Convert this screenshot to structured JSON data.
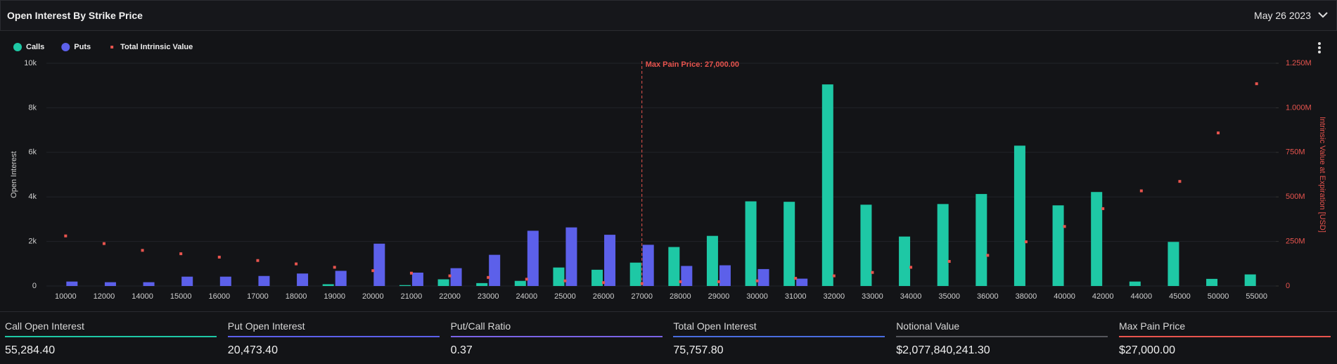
{
  "header": {
    "title": "Open Interest By Strike Price",
    "date": "May 26 2023"
  },
  "chart_data": {
    "type": "bar",
    "categories": [
      "10000",
      "12000",
      "14000",
      "15000",
      "16000",
      "17000",
      "18000",
      "19000",
      "20000",
      "21000",
      "22000",
      "23000",
      "24000",
      "25000",
      "26000",
      "27000",
      "28000",
      "29000",
      "30000",
      "31000",
      "32000",
      "33000",
      "34000",
      "35000",
      "36000",
      "38000",
      "40000",
      "42000",
      "44000",
      "45000",
      "50000",
      "55000"
    ],
    "series": [
      {
        "name": "Calls",
        "color": "#1ec8a5",
        "values": [
          0,
          0,
          0,
          0,
          0,
          0,
          0,
          80,
          0,
          40,
          300,
          130,
          230,
          830,
          730,
          1050,
          1750,
          2250,
          3800,
          3780,
          9050,
          3650,
          2220,
          3680,
          4130,
          6300,
          3620,
          4220,
          200,
          1980,
          320,
          520
        ]
      },
      {
        "name": "Puts",
        "color": "#5c60ea",
        "values": [
          200,
          170,
          170,
          420,
          420,
          450,
          560,
          680,
          1900,
          600,
          800,
          1400,
          2480,
          2630,
          2300,
          1850,
          900,
          930,
          760,
          330,
          0,
          0,
          0,
          0,
          0,
          0,
          0,
          0,
          0,
          0,
          0,
          0
        ]
      },
      {
        "name": "Total Intrinsic Value",
        "color": "#e8544e",
        "axis": "y2",
        "values": [
          281,
          238,
          200,
          181,
          162,
          143,
          124,
          105,
          86,
          72,
          57,
          48,
          38,
          29,
          19,
          14,
          24,
          24,
          29,
          43,
          57,
          76,
          105,
          138,
          172,
          248,
          334,
          434,
          534,
          587,
          859,
          1135
        ]
      }
    ],
    "ylabel": "Open Interest",
    "y2label": "Intrinsic Value at Expiration [USD]",
    "ylim": [
      0,
      10000
    ],
    "yticks": [
      0,
      {
        "value": 2000,
        "label": "2k"
      },
      {
        "value": 4000,
        "label": "4k"
      },
      {
        "value": 6000,
        "label": "6k"
      },
      {
        "value": 8000,
        "label": "8k"
      },
      {
        "value": 10000,
        "label": "10k"
      }
    ],
    "y2lim": [
      0,
      1250
    ],
    "y2ticks": [
      0,
      {
        "value": 250,
        "label": "250M"
      },
      {
        "value": 500,
        "label": "500M"
      },
      {
        "value": 750,
        "label": "750M"
      },
      {
        "value": 1000,
        "label": "1.000M"
      },
      {
        "value": 1250,
        "label": "1.250M"
      }
    ],
    "grid": true,
    "legend": "top-left",
    "max_pain_strike": "27000",
    "annotation": "Max Pain Price: 27,000.00",
    "annotation_color": "#e8544e"
  },
  "stats": [
    {
      "label": "Call Open Interest",
      "value": "55,284.40",
      "color": "#1ec8a5"
    },
    {
      "label": "Put Open Interest",
      "value": "20,473.40",
      "color": "#5c60ea"
    },
    {
      "label": "Put/Call Ratio",
      "value": "0.37",
      "color": "#7a64e6"
    },
    {
      "label": "Total Open Interest",
      "value": "75,757.80",
      "color": "#4a6ddf"
    },
    {
      "label": "Notional Value",
      "value": "$2,077,840,241.30",
      "color": "#55565c"
    },
    {
      "label": "Max Pain Price",
      "value": "$27,000.00",
      "color": "#e8544e"
    }
  ]
}
